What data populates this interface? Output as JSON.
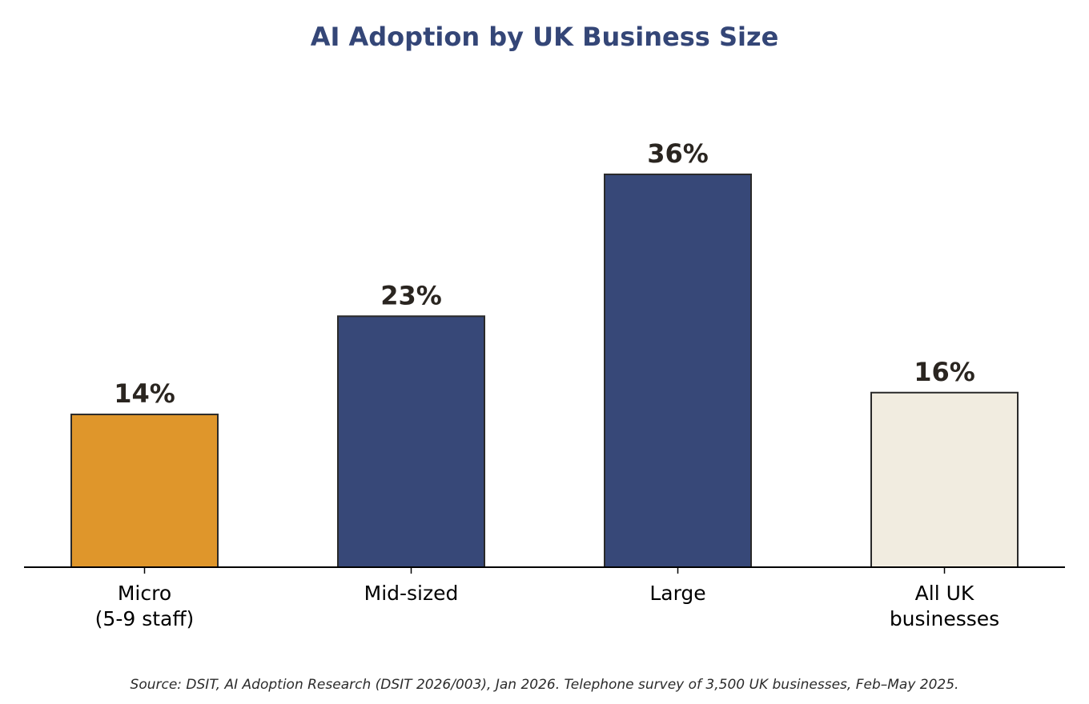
{
  "chart_data": {
    "type": "bar",
    "title": "AI Adoption by UK Business Size",
    "categories": [
      [
        "Micro",
        "(5-9 staff)"
      ],
      [
        "Mid-sized"
      ],
      [
        "Large"
      ],
      [
        "All UK",
        "businesses"
      ]
    ],
    "values": [
      14,
      23,
      36,
      16
    ],
    "value_labels": [
      "14%",
      "23%",
      "36%",
      "16%"
    ],
    "bar_colors": [
      "#DF962B",
      "#374878",
      "#374878",
      "#F1ECE0"
    ],
    "xlabel": "",
    "ylabel": "",
    "ylim": [
      0,
      47.5
    ],
    "grid": false,
    "legend": "none",
    "source": "Source: DSIT, AI Adoption Research (DSIT 2026/003), Jan 2026. Telephone survey of 3,500 UK businesses, Feb–May 2025."
  },
  "colors": {
    "title": "#344677",
    "bar_edge": "#2a2a2a",
    "value_label": "#2a2520",
    "axis": "#000000"
  }
}
